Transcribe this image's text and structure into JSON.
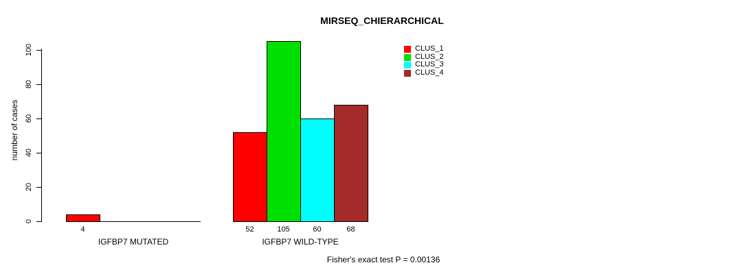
{
  "chart_data": {
    "type": "bar",
    "title": "MIRSEQ_CHIERARCHICAL",
    "ylabel": "number of cases",
    "xlabel": "",
    "ylim": [
      0,
      100
    ],
    "yticks": [
      0,
      20,
      40,
      60,
      80,
      100
    ],
    "grid": false,
    "legend_position": "top-right",
    "groups": [
      {
        "label": "IGFBP7 MUTATED",
        "bars": [
          {
            "cluster": "CLUS_1",
            "value": 4,
            "color": "#FF0000"
          }
        ]
      },
      {
        "label": "IGFBP7 WILD-TYPE",
        "bars": [
          {
            "cluster": "CLUS_1",
            "value": 52,
            "color": "#FF0000"
          },
          {
            "cluster": "CLUS_2",
            "value": 105,
            "color": "#00E000"
          },
          {
            "cluster": "CLUS_3",
            "value": 60,
            "color": "#00FFFF"
          },
          {
            "cluster": "CLUS_4",
            "value": 68,
            "color": "#A52A2A"
          }
        ]
      }
    ],
    "legend": [
      {
        "label": "CLUS_1",
        "color": "#FF0000"
      },
      {
        "label": "CLUS_2",
        "color": "#00E000"
      },
      {
        "label": "CLUS_3",
        "color": "#00FFFF"
      },
      {
        "label": "CLUS_4",
        "color": "#A52A2A"
      }
    ],
    "footnote": "Fisher's exact test P = 0.00136",
    "colors": {
      "axis": "#000000",
      "text": "#000000",
      "background": "#FFFFFF"
    }
  }
}
